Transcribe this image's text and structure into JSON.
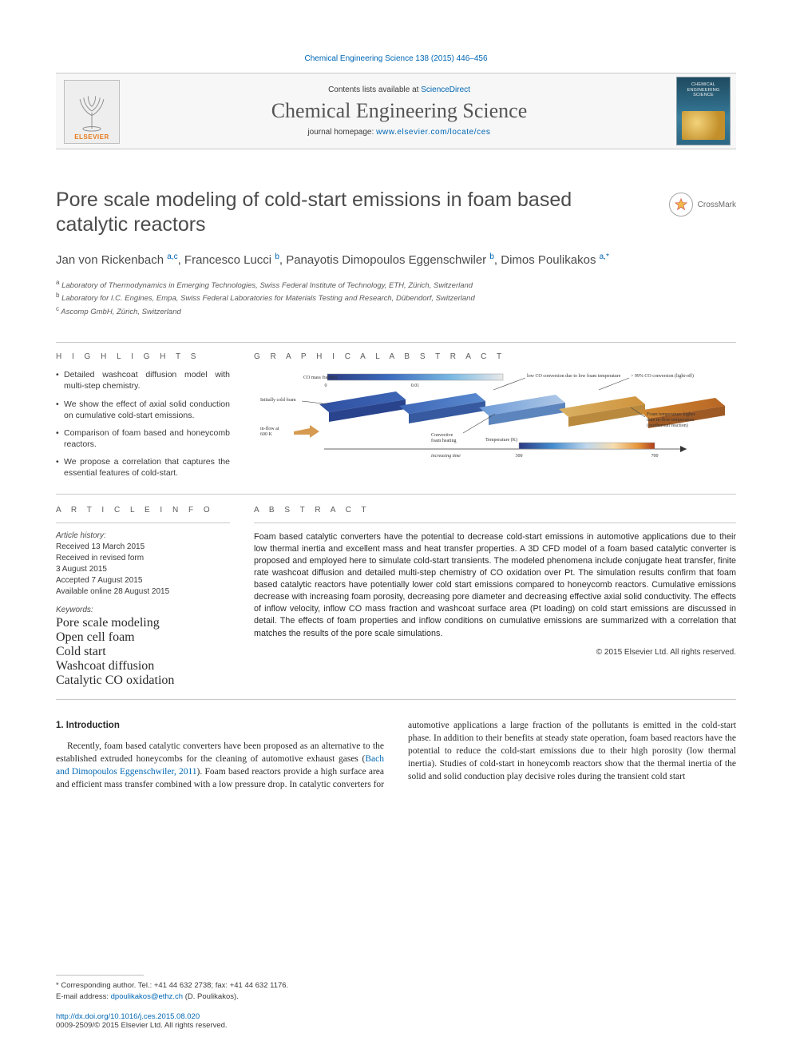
{
  "header": {
    "citation": "Chemical Engineering Science 138 (2015) 446–456",
    "contents_prefix": "Contents lists available at ",
    "contents_link": "ScienceDirect",
    "journal_name": "Chemical Engineering Science",
    "homepage_prefix": "journal homepage: ",
    "homepage_link": "www.elsevier.com/locate/ces",
    "elsevier_word": "ELSEVIER",
    "cover_title": "CHEMICAL ENGINEERING SCIENCE"
  },
  "crossmark_label": "CrossMark",
  "title": "Pore scale modeling of cold-start emissions in foam based catalytic reactors",
  "authors_html": "Jan von Rickenbach <sup>a,c</sup>, Francesco Lucci <sup>b</sup>, Panayotis Dimopoulos Eggenschwiler <sup>b</sup>, Dimos Poulikakos <sup>a,*</sup>",
  "affiliations": [
    "a Laboratory of Thermodynamics in Emerging Technologies, Swiss Federal Institute of Technology, ETH, Zürich, Switzerland",
    "b Laboratory for I.C. Engines, Empa, Swiss Federal Laboratories for Materials Testing and Research, Dübendorf, Switzerland",
    "c Ascomp GmbH, Zürich, Switzerland"
  ],
  "section_heads": {
    "highlights": "H I G H L I G H T S",
    "graphical": "G R A P H I C A L  A B S T R A C T",
    "article_info": "A R T I C L E  I N F O",
    "abstract": "A B S T R A C T"
  },
  "highlights": [
    "Detailed washcoat diffusion model with multi-step chemistry.",
    "We show the effect of axial solid conduction on cumulative cold-start emissions.",
    "Comparison of foam based and honeycomb reactors.",
    "We propose a correlation that captures the essential features of cold-start."
  ],
  "graphical_abstract": {
    "labels": {
      "co_mass": "CO mass fraction",
      "low_co": "low CO conversion due to low foam temperature",
      "lightoff": "> 99% CO conversion (light-off)",
      "cold_foam": "Initially cold foam",
      "inflow": "in-flow at 600 K",
      "convective": "Convective foam heating",
      "foam_temp": "Foam temperature higher than in-flow temperature (exothermal reaction)",
      "temp": "Temperature (K)",
      "time": "increasing time"
    },
    "co_bar": {
      "min": 0,
      "mid": 0.01,
      "colors": [
        "#2b3b82",
        "#3b6bbd",
        "#78b8e3",
        "#e9e9e9"
      ]
    },
    "temp_bar": {
      "min": 300,
      "max": 700,
      "colors": [
        "#2b3b82",
        "#458ccf",
        "#c1d8ec",
        "#f7dcae",
        "#e59338",
        "#ad3e1e"
      ]
    },
    "foam_colors": [
      "#3656a6",
      "#4a79c3",
      "#8fb6df",
      "#d5a34f",
      "#c4792a"
    ],
    "label_fontsize": 6,
    "background": "#ffffff"
  },
  "article_info": {
    "history_head": "Article history:",
    "history": [
      "Received 13 March 2015",
      "Received in revised form",
      "3 August 2015",
      "Accepted 7 August 2015",
      "Available online 28 August 2015"
    ],
    "keywords_head": "Keywords:",
    "keywords": [
      "Pore scale modeling",
      "Open cell foam",
      "Cold start",
      "Washcoat diffusion",
      "Catalytic CO oxidation"
    ]
  },
  "abstract": "Foam based catalytic converters have the potential to decrease cold-start emissions in automotive applications due to their low thermal inertia and excellent mass and heat transfer properties. A 3D CFD model of a foam based catalytic converter is proposed and employed here to simulate cold-start transients. The modeled phenomena include conjugate heat transfer, finite rate washcoat diffusion and detailed multi-step chemistry of CO oxidation over Pt. The simulation results confirm that foam based catalytic reactors have potentially lower cold start emissions compared to honeycomb reactors. Cumulative emissions decrease with increasing foam porosity, decreasing pore diameter and decreasing effective axial solid conductivity. The effects of inflow velocity, inflow CO mass fraction and washcoat surface area (Pt loading) on cold start emissions are discussed in detail. The effects of foam properties and inflow conditions on cumulative emissions are summarized with a correlation that matches the results of the pore scale simulations.",
  "copyright": "© 2015 Elsevier Ltd. All rights reserved.",
  "intro": {
    "heading": "1.  Introduction",
    "para1_pre": "Recently, foam based catalytic converters have been proposed as an alternative to the established extruded honeycombs for the cleaning of automotive exhaust gases (",
    "para1_link": "Bach and Dimopoulos Eggenschwiler, 2011",
    "para1_post": "). Foam based reactors provide a high surface area and efficient mass transfer combined with a low pressure drop. In catalytic converters for automotive applications a large fraction of the pollutants is emitted in the cold-start phase. In addition to their benefits at steady state operation, foam based reactors have the potential to reduce the cold-start emissions due to their high porosity (low thermal inertia). Studies of cold-start in honeycomb reactors show that the thermal inertia of the solid and solid conduction play decisive roles during the transient cold start"
  },
  "footer": {
    "corr_label": "* Corresponding author. Tel.: +41 44 632 2738; fax: +41 44 632 1176.",
    "email_label": "E-mail address: ",
    "email": "dpoulikakos@ethz.ch",
    "email_person": " (D. Poulikakos).",
    "doi": "http://dx.doi.org/10.1016/j.ces.2015.08.020",
    "issn": "0009-2509/© 2015 Elsevier Ltd. All rights reserved."
  },
  "colors": {
    "link": "#0066b3",
    "text": "#2a2a2a",
    "muted": "#5a5a5a",
    "rule": "#c9c9c9",
    "orange": "#e77a1c"
  }
}
